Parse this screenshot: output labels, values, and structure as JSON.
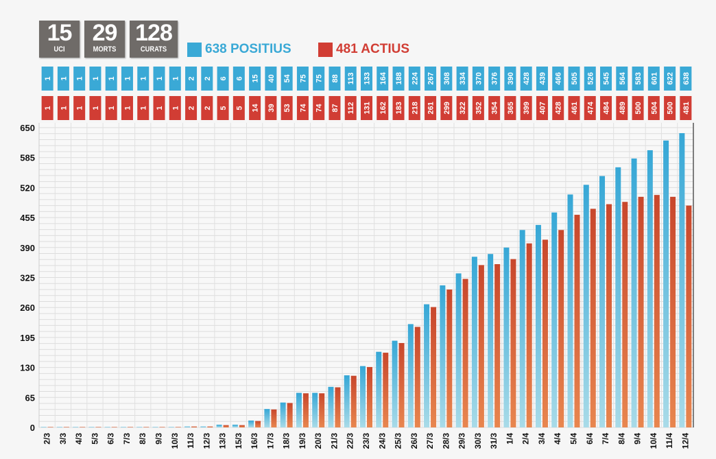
{
  "stats": [
    {
      "value": "15",
      "label": "UCI"
    },
    {
      "value": "29",
      "label": "MORTS"
    },
    {
      "value": "128",
      "label": "CURATS"
    }
  ],
  "legend": {
    "positius": "638 POSITIUS",
    "actius": "481 ACTIUS"
  },
  "colors": {
    "blue": "#3aa9d6",
    "red": "#d13d34",
    "orange": "#e07a45",
    "statbg": "#6f6b68"
  },
  "chart_data": {
    "type": "bar",
    "categories": [
      "2/3",
      "3/3",
      "4/3",
      "5/3",
      "6/3",
      "7/3",
      "8/3",
      "9/3",
      "10/3",
      "11/3",
      "12/3",
      "13/3",
      "15/3",
      "16/3",
      "17/3",
      "18/3",
      "19/3",
      "20/3",
      "21/3",
      "22/3",
      "23/3",
      "24/3",
      "25/3",
      "26/3",
      "27/3",
      "28/3",
      "29/3",
      "30/3",
      "31/3",
      "1/4",
      "2/4",
      "3/4",
      "4/4",
      "5/4",
      "6/4",
      "7/4",
      "8/4",
      "9/4",
      "10/4",
      "11/4",
      "12/4"
    ],
    "series": [
      {
        "name": "Positius",
        "values": [
          1,
          1,
          1,
          1,
          1,
          1,
          1,
          1,
          1,
          2,
          2,
          6,
          6,
          15,
          40,
          54,
          75,
          75,
          88,
          113,
          133,
          164,
          188,
          224,
          267,
          308,
          334,
          370,
          376,
          390,
          428,
          439,
          466,
          505,
          526,
          545,
          564,
          583,
          601,
          622,
          638
        ]
      },
      {
        "name": "Actius",
        "values": [
          1,
          1,
          1,
          1,
          1,
          1,
          1,
          1,
          1,
          2,
          2,
          5,
          5,
          14,
          39,
          53,
          74,
          74,
          87,
          112,
          131,
          162,
          183,
          218,
          261,
          299,
          322,
          352,
          354,
          365,
          399,
          407,
          428,
          461,
          474,
          484,
          489,
          500,
          504,
          500,
          481
        ]
      }
    ],
    "yticks": [
      0,
      65,
      130,
      195,
      260,
      325,
      390,
      455,
      520,
      585,
      650
    ],
    "ylim": [
      0,
      650
    ],
    "grid": true
  }
}
